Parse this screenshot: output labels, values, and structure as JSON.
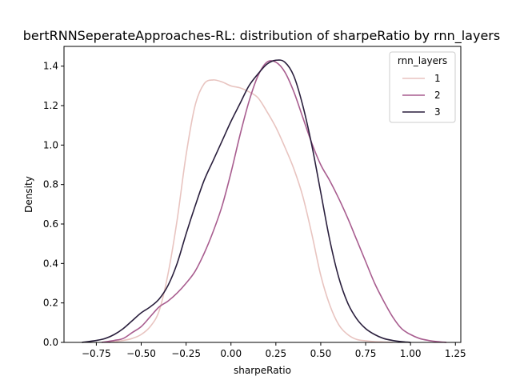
{
  "chart_data": {
    "type": "line",
    "title": "bertRNNSeperateApproaches-RL: distribution of sharpeRatio by rnn_layers",
    "xlabel": "sharpeRatio",
    "ylabel": "Density",
    "xlim": [
      -0.93,
      1.28
    ],
    "ylim": [
      0.0,
      1.5
    ],
    "xticks": [
      -0.75,
      -0.5,
      -0.25,
      0.0,
      0.25,
      0.5,
      0.75,
      1.0,
      1.25
    ],
    "xtick_labels": [
      "−0.75",
      "−0.50",
      "−0.25",
      "0.00",
      "0.25",
      "0.50",
      "0.75",
      "1.00",
      "1.25"
    ],
    "yticks": [
      0.0,
      0.2,
      0.4,
      0.6,
      0.8,
      1.0,
      1.2,
      1.4
    ],
    "ytick_labels": [
      "0.0",
      "0.2",
      "0.4",
      "0.6",
      "0.8",
      "1.0",
      "1.2",
      "1.4"
    ],
    "grid": false,
    "legend": {
      "title": "rnn_layers",
      "placement": "top-right"
    },
    "series": [
      {
        "name": "1",
        "color": "#e8c4c0",
        "x": [
          -0.68,
          -0.6,
          -0.55,
          -0.5,
          -0.45,
          -0.4,
          -0.35,
          -0.3,
          -0.25,
          -0.2,
          -0.15,
          -0.1,
          -0.05,
          0.0,
          0.05,
          0.1,
          0.15,
          0.2,
          0.25,
          0.3,
          0.35,
          0.4,
          0.45,
          0.5,
          0.55,
          0.6,
          0.65,
          0.7,
          0.75,
          0.8,
          0.85,
          0.9
        ],
        "y": [
          0.0,
          0.01,
          0.02,
          0.04,
          0.08,
          0.16,
          0.35,
          0.62,
          0.95,
          1.2,
          1.31,
          1.33,
          1.32,
          1.3,
          1.29,
          1.27,
          1.24,
          1.17,
          1.09,
          0.99,
          0.88,
          0.74,
          0.55,
          0.34,
          0.19,
          0.09,
          0.04,
          0.015,
          0.008,
          0.004,
          0.002,
          0.0
        ]
      },
      {
        "name": "2",
        "color": "#a85d8f",
        "x": [
          -0.72,
          -0.65,
          -0.6,
          -0.55,
          -0.5,
          -0.45,
          -0.4,
          -0.35,
          -0.3,
          -0.25,
          -0.2,
          -0.15,
          -0.1,
          -0.05,
          0.0,
          0.05,
          0.1,
          0.15,
          0.2,
          0.25,
          0.3,
          0.35,
          0.4,
          0.45,
          0.5,
          0.55,
          0.6,
          0.65,
          0.7,
          0.75,
          0.8,
          0.85,
          0.9,
          0.95,
          1.0,
          1.05,
          1.1,
          1.15,
          1.2
        ],
        "y": [
          0.0,
          0.01,
          0.02,
          0.05,
          0.08,
          0.13,
          0.18,
          0.21,
          0.25,
          0.3,
          0.36,
          0.45,
          0.56,
          0.69,
          0.86,
          1.05,
          1.22,
          1.35,
          1.42,
          1.42,
          1.37,
          1.27,
          1.14,
          1.01,
          0.9,
          0.82,
          0.73,
          0.63,
          0.52,
          0.41,
          0.3,
          0.21,
          0.13,
          0.07,
          0.04,
          0.02,
          0.01,
          0.004,
          0.0
        ]
      },
      {
        "name": "3",
        "color": "#2a1f3d",
        "x": [
          -0.83,
          -0.75,
          -0.7,
          -0.65,
          -0.6,
          -0.55,
          -0.5,
          -0.45,
          -0.4,
          -0.35,
          -0.3,
          -0.25,
          -0.2,
          -0.15,
          -0.1,
          -0.05,
          0.0,
          0.05,
          0.1,
          0.15,
          0.2,
          0.25,
          0.3,
          0.35,
          0.4,
          0.45,
          0.5,
          0.55,
          0.6,
          0.65,
          0.7,
          0.75,
          0.8,
          0.85,
          0.9,
          0.95,
          1.0
        ],
        "y": [
          0.0,
          0.01,
          0.02,
          0.04,
          0.07,
          0.11,
          0.15,
          0.18,
          0.22,
          0.29,
          0.4,
          0.55,
          0.69,
          0.82,
          0.92,
          1.02,
          1.12,
          1.21,
          1.3,
          1.36,
          1.41,
          1.43,
          1.42,
          1.35,
          1.2,
          1.0,
          0.76,
          0.52,
          0.33,
          0.2,
          0.12,
          0.07,
          0.04,
          0.02,
          0.01,
          0.004,
          0.0
        ]
      }
    ]
  }
}
